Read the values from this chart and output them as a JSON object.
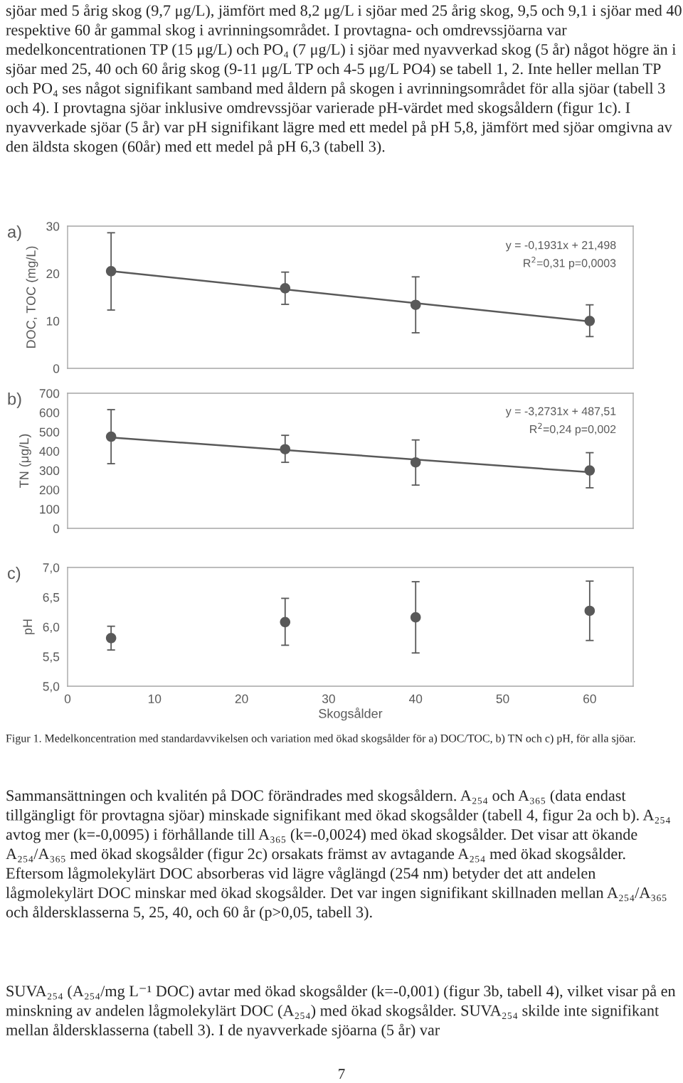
{
  "chart_data": [
    {
      "type": "scatter",
      "ylabel": "DOC, TOC (mg/L)",
      "xlim": [
        0,
        65
      ],
      "ylim": [
        0,
        30
      ],
      "yticks": [
        0,
        10,
        20,
        30
      ],
      "tick_labels": "y",
      "grid": false,
      "series": [
        {
          "marker": "circle",
          "x": [
            5,
            25,
            40,
            60
          ],
          "values": [
            20.5,
            16.9,
            13.4,
            10.0
          ],
          "errors": [
            [
              12.3,
              28.6
            ],
            [
              13.5,
              20.3
            ],
            [
              7.5,
              19.3
            ],
            [
              6.7,
              13.4
            ]
          ],
          "color": "#595959"
        },
        {
          "type": "line",
          "marker": "none",
          "x": [
            5,
            60
          ],
          "values": [
            20.5,
            9.9
          ],
          "color": "#595959"
        }
      ],
      "annotations": [
        "sjöar med 5 årig skog (9,7 μg/L), jämfört med 8,2 μg/L i sjöar med 25 årig skog, 9,5 och 9,1 i sjöar med 40 respektive 60 år gammal skog i avrinningsområdet. I provtagna- och omdrevssjöarna var medelkoncentrationen TP (15 μg/L) och PO₄ (7 μg/L) i sjöar med nyavverkad skog (5 år) något högre än i sjöar med 25, 40 och 60 årig skog (9-11 μg/L TP och 4-5 μg/L PO4) se tabell 1, 2. Inte heller mellan TP och PO₄ ses något signifikant samband med åldern på skogen i avrinningsområdet för alla sjöar (tabell 3 och 4). I provtagna sjöar inklusive omdrevssjöar varierade pH-värdet med skogsåldern (figur 1c). I nyavverkade sjöar (5 år) var pH signifikant lägre med ett medel på pH 5,8, jämfört med sjöar omgivna av den äldsta skogen (60år) med ett medel på pH 6,3 (tabell 3).",
        "a)",
        "y = -0,1931x + 21,498",
        "R$^{2}$=0,31 p=0,0003"
      ]
    },
    {
      "type": "scatter",
      "ylabel": "TN (μg/L)",
      "xlim": [
        0,
        65
      ],
      "ylim": [
        0,
        700
      ],
      "yticks": [
        0,
        100,
        200,
        300,
        400,
        500,
        600,
        700
      ],
      "tick_labels": "y",
      "grid": false,
      "series": [
        {
          "marker": "circle",
          "x": [
            5,
            25,
            40,
            60
          ],
          "values": [
            475,
            410,
            342,
            300
          ],
          "errors": [
            [
              335,
              615
            ],
            [
              342,
              482
            ],
            [
              224,
              458
            ],
            [
              210,
              392
            ]
          ],
          "color": "#595959"
        },
        {
          "type": "line",
          "marker": "none",
          "x": [
            5,
            60
          ],
          "values": [
            471,
            291
          ],
          "color": "#595959"
        }
      ],
      "annotations": [
        "b)",
        "y = -3,2731x + 487,51",
        "R$^{2}$=0,24 p=0,002"
      ]
    },
    {
      "type": "scatter",
      "ylabel": "pH",
      "xlabel": "Skogsålder",
      "xlim": [
        0,
        65
      ],
      "xticks": [
        0,
        10,
        20,
        30,
        40,
        50,
        60
      ],
      "ylim": [
        5,
        7
      ],
      "yticks": [
        {
          "value": 5,
          "label": "5,0"
        },
        {
          "value": 5.5,
          "label": "5,5"
        },
        {
          "value": 6,
          "label": "6,0"
        },
        {
          "value": 6.5,
          "label": "6,5"
        },
        {
          "value": 7,
          "label": "7,0"
        }
      ],
      "grid": false,
      "series": [
        {
          "marker": "circle",
          "x": [
            5,
            25,
            40,
            60
          ],
          "values": [
            5.81,
            6.08,
            6.16,
            6.27
          ],
          "errors": [
            [
              5.61,
              6.01
            ],
            [
              5.69,
              6.48
            ],
            [
              5.56,
              6.76
            ],
            [
              5.77,
              6.77
            ]
          ],
          "color": "#595959"
        }
      ],
      "annotations": [
        "c)",
        "Figur 1. Medelkoncentration med standardavvikelsen och variation med ökad skogsålder för a) DOC/TOC, b) TN och c) pH, för alla sjöar.",
        "Sammansättningen och kvalitén på DOC förändrades med skogsåldern. A₂₅₄ och A₃₆₅ (data endast tillgängligt för provtagna sjöar) minskade signifikant med ökad skogsålder (tabell 4, figur 2a och b). A₂₅₄ avtog mer (k=-0,0095) i förhållande till A₃₆₅ (k=-0,0024) med ökad skogsålder. Det visar att ökande A₂₅₄/A₃₆₅ med ökad skogsålder (figur 2c) orsakats främst av avtagande A₂₅₄ med ökad skogsålder. Eftersom lågmolekylärt DOC absorberas vid lägre våglängd (254 nm) betyder det att andelen lågmolekylärt DOC minskar med ökad skogsålder. Det var ingen signifikant skillnaden mellan A₂₅₄/A₃₆₅ och åldersklasserna 5, 25, 40, och 60 år (p>0,05, tabell 3).",
        "SUVA₂₅₄ (A₂₅₄/mg L⁻¹ DOC) avtar med ökad skogsålder (k=-0,001) (figur 3b, tabell 4), vilket visar på en minskning av andelen lågmolekylärt DOC (A₂₅₄) med ökad skogsålder. SUVA₂₅₄ skilde inte signifikant mellan åldersklasserna (tabell 3). I de nyavverkade sjöarna (5 år) var",
        "7"
      ]
    }
  ]
}
